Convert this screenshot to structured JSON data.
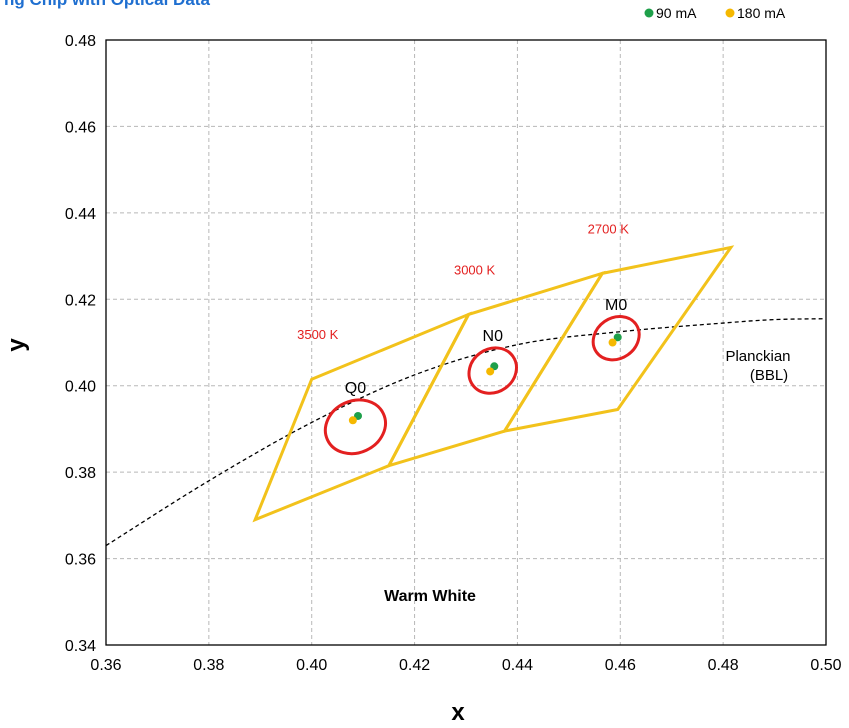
{
  "title": "ng Chip with Optical Data",
  "colors": {
    "series_90": "#1ea04a",
    "series_180": "#f5b800",
    "bin_outline": "#f2c21b",
    "ellipse": "#e32020",
    "cct_label": "#e32020",
    "region_label": "#f2c21b",
    "grid": "#b8b8b8",
    "title": "#1f6fd0"
  },
  "chart_data": {
    "type": "scatter",
    "xlabel": "x",
    "ylabel": "y",
    "xlim": [
      0.36,
      0.5
    ],
    "ylim": [
      0.34,
      0.48
    ],
    "xticks": [
      "0.36",
      "0.38",
      "0.40",
      "0.42",
      "0.44",
      "0.46",
      "0.48",
      "0.50"
    ],
    "yticks": [
      "0.34",
      "0.36",
      "0.38",
      "0.40",
      "0.42",
      "0.44",
      "0.46",
      "0.48"
    ],
    "grid": true,
    "legend_position": "top-right",
    "series": [
      {
        "name": "90 mA",
        "points": [
          [
            0.409,
            0.393
          ],
          [
            0.4355,
            0.4045
          ],
          [
            0.4595,
            0.4112
          ]
        ]
      },
      {
        "name": "180 mA",
        "points": [
          [
            0.408,
            0.392
          ],
          [
            0.4347,
            0.4033
          ],
          [
            0.4585,
            0.41
          ]
        ]
      }
    ],
    "bins": [
      {
        "name": "Q0",
        "cct": "3500 K",
        "polygon": [
          [
            0.4,
            0.4015
          ],
          [
            0.4305,
            0.4165
          ],
          [
            0.415,
            0.3815
          ],
          [
            0.389,
            0.369
          ]
        ],
        "center": [
          0.4085,
          0.3905
        ],
        "rx": 0.006,
        "ry": 0.006,
        "angle": 25
      },
      {
        "name": "N0",
        "cct": "3000 K",
        "polygon": [
          [
            0.4305,
            0.4165
          ],
          [
            0.4565,
            0.426
          ],
          [
            0.4375,
            0.3895
          ],
          [
            0.415,
            0.3815
          ]
        ],
        "center": [
          0.4352,
          0.4035
        ],
        "rx": 0.0048,
        "ry": 0.005,
        "angle": 35
      },
      {
        "name": "M0",
        "cct": "2700 K",
        "polygon": [
          [
            0.4565,
            0.426
          ],
          [
            0.4815,
            0.432
          ],
          [
            0.4595,
            0.3945
          ],
          [
            0.4375,
            0.3895
          ]
        ],
        "center": [
          0.4592,
          0.411
        ],
        "rx": 0.0047,
        "ry": 0.0047,
        "angle": 35
      }
    ],
    "planckian": {
      "label_line1": "Planckian",
      "label_line2": "(BBL)",
      "points": [
        [
          0.36,
          0.363
        ],
        [
          0.38,
          0.378
        ],
        [
          0.4,
          0.3915
        ],
        [
          0.42,
          0.4025
        ],
        [
          0.44,
          0.4095
        ],
        [
          0.46,
          0.4125
        ],
        [
          0.48,
          0.4145
        ],
        [
          0.49,
          0.4153
        ],
        [
          0.5,
          0.4155
        ]
      ]
    },
    "region_label": "Warm White"
  }
}
